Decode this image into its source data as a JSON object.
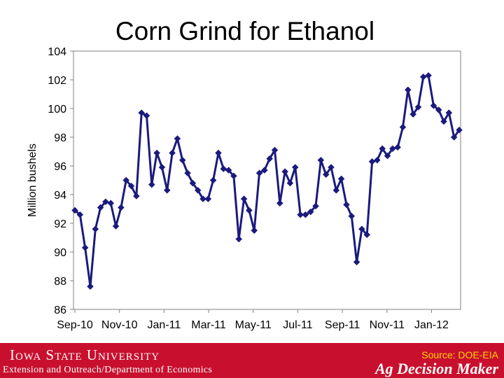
{
  "slide": {
    "title": "Corn Grind for Ethanol"
  },
  "chart_data": {
    "type": "line",
    "title": "Corn Grind for Ethanol",
    "ylabel": "Million bushels",
    "xlabel": "",
    "ylim": [
      86,
      104
    ],
    "yticks": [
      "86",
      "88",
      "90",
      "92",
      "94",
      "96",
      "98",
      "100",
      "102",
      "104"
    ],
    "xtick_labels": [
      "Sep-10",
      "Nov-10",
      "Jan-11",
      "Mar-11",
      "May-11",
      "Jul-11",
      "Sep-11",
      "Nov-11",
      "Jan-12"
    ],
    "xtick_indices": [
      0,
      8.7,
      17.4,
      26.1,
      34.8,
      43.5,
      52.2,
      60.9,
      69.6
    ],
    "grid": false,
    "series_color": "#1a1a7e",
    "series": [
      {
        "values": [
          92.9,
          92.6,
          90.3,
          87.6,
          91.6,
          93.1,
          93.5,
          93.4,
          91.8,
          93.1,
          95.0,
          94.6,
          93.9,
          99.7,
          99.5,
          94.7,
          96.9,
          95.9,
          94.3,
          96.9,
          97.9,
          96.4,
          95.5,
          94.8,
          94.3,
          93.7,
          93.7,
          95.0,
          96.9,
          95.8,
          95.7,
          95.3,
          90.9,
          93.7,
          92.9,
          91.5,
          95.5,
          95.7,
          96.5,
          97.1,
          93.4,
          95.6,
          94.8,
          95.9,
          92.6,
          92.6,
          92.8,
          93.2,
          96.4,
          95.4,
          95.9,
          94.3,
          95.1,
          93.3,
          92.5,
          89.3,
          91.6,
          91.2,
          96.3,
          96.4,
          97.2,
          96.7,
          97.2,
          97.3,
          98.7,
          101.3,
          99.6,
          100.1,
          102.2,
          102.3,
          100.2,
          99.9,
          99.1,
          99.7,
          98.0,
          98.5
        ]
      }
    ]
  },
  "footer": {
    "university": "Iowa State University",
    "department": "Extension and Outreach/Department of Economics",
    "source": "Source: DOE-EIA",
    "brand": "Ag Decision Maker"
  },
  "colors": {
    "footer_background": "#c8102e",
    "source_text": "#ffd200",
    "line": "#1a1a7e"
  }
}
